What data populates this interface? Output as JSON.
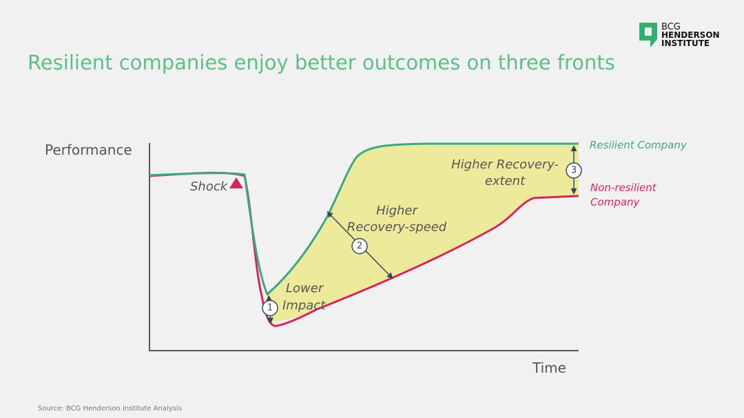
{
  "header": {
    "title": "Resilient companies enjoy better outcomes on three fronts",
    "logo": [
      "BCG",
      "HENDERSON",
      "INSTITUTE"
    ]
  },
  "axes": {
    "y_label": "Performance",
    "x_label": "Time"
  },
  "annotations": {
    "shock": "Shock",
    "impact": [
      "Lower",
      "Impact"
    ],
    "speed": [
      "Higher",
      "Recovery-speed"
    ],
    "extent": [
      "Higher Recovery-",
      "extent"
    ],
    "markers": [
      "1",
      "2",
      "3"
    ]
  },
  "legend": {
    "resilient": "Resilient  Company",
    "non_resilient": [
      "Non-resilient",
      "Company"
    ]
  },
  "footer": {
    "source": "Source:  BCG Henderson  Institute  Analysis"
  }
}
